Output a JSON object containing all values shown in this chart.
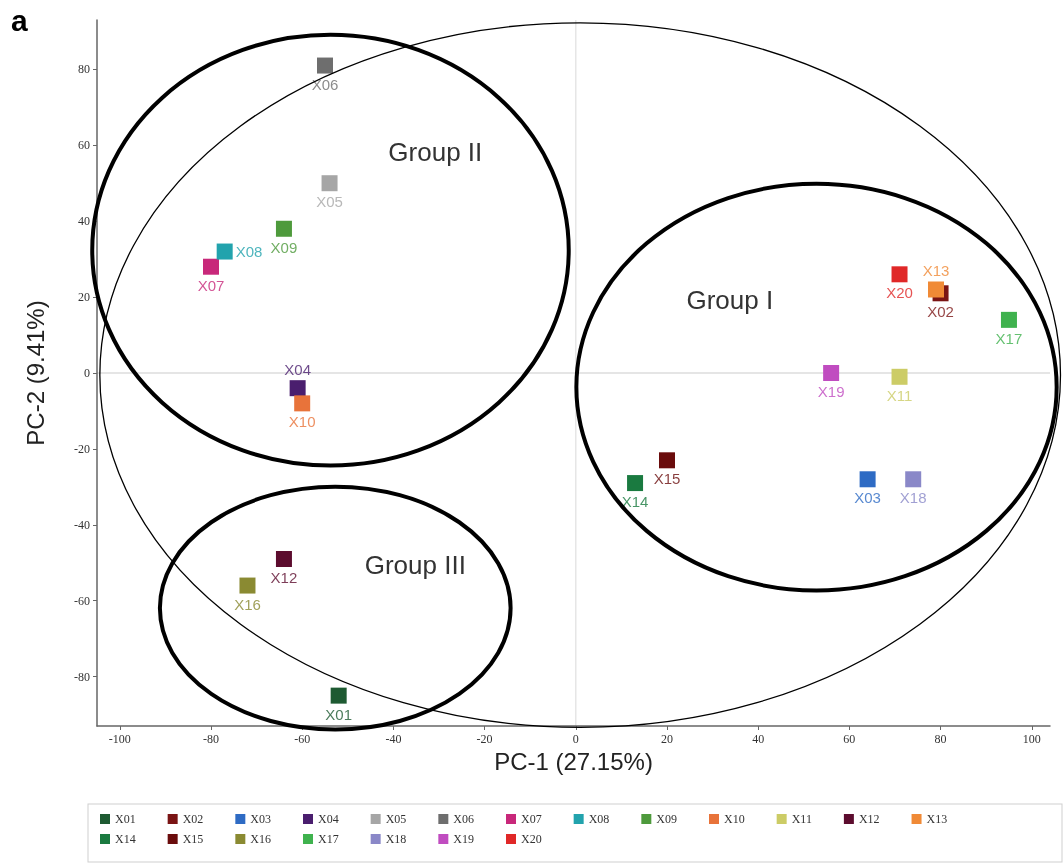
{
  "chart_data": {
    "type": "scatter",
    "title": "a",
    "xlabel": "PC-1 (27.15%)",
    "ylabel": "PC-2 (9.41%)",
    "xlim": [
      -105,
      104
    ],
    "ylim": [
      -93,
      93
    ],
    "xticks": [
      -100,
      -80,
      -60,
      -40,
      -20,
      0,
      20,
      40,
      60,
      80,
      100
    ],
    "yticks": [
      -80,
      -60,
      -40,
      -20,
      0,
      20,
      40,
      60,
      80
    ],
    "marker": "square",
    "legend": "bottom",
    "ref_lines": [
      {
        "axis": "x",
        "value": 0,
        "color": "#e6e6e6"
      },
      {
        "axis": "y",
        "value": 0,
        "color": "#dddddd"
      }
    ],
    "annotations": [
      "Group II",
      "Group I",
      "Group III"
    ],
    "series": [
      {
        "name": "X01",
        "color": "#1e5a32",
        "x": [
          -52
        ],
        "values": [
          -85
        ]
      },
      {
        "name": "X02",
        "color": "#7a1414",
        "x": [
          80
        ],
        "values": [
          21
        ]
      },
      {
        "name": "X03",
        "color": "#2e6bc4",
        "x": [
          64
        ],
        "values": [
          -28
        ]
      },
      {
        "name": "X04",
        "color": "#4a1e6e",
        "x": [
          -61
        ],
        "values": [
          -4
        ]
      },
      {
        "name": "X05",
        "color": "#a6a6a6",
        "x": [
          -54
        ],
        "values": [
          50
        ]
      },
      {
        "name": "X06",
        "color": "#6e6e6e",
        "x": [
          -55
        ],
        "values": [
          81
        ]
      },
      {
        "name": "X07",
        "color": "#c8287a",
        "x": [
          -80
        ],
        "values": [
          28
        ]
      },
      {
        "name": "X08",
        "color": "#22a3ad",
        "x": [
          -77
        ],
        "values": [
          32
        ]
      },
      {
        "name": "X09",
        "color": "#4e9a3c",
        "x": [
          -64
        ],
        "values": [
          38
        ]
      },
      {
        "name": "X10",
        "color": "#e8733a",
        "x": [
          -60
        ],
        "values": [
          -8
        ]
      },
      {
        "name": "X11",
        "color": "#cccc66",
        "x": [
          71
        ],
        "values": [
          -1
        ]
      },
      {
        "name": "X12",
        "color": "#5c0c2e",
        "x": [
          -64
        ],
        "values": [
          -49
        ]
      },
      {
        "name": "X13",
        "color": "#f08a36",
        "x": [
          79
        ],
        "values": [
          22
        ]
      },
      {
        "name": "X14",
        "color": "#1a7a40",
        "x": [
          13
        ],
        "values": [
          -29
        ]
      },
      {
        "name": "X15",
        "color": "#6a0c0c",
        "x": [
          20
        ],
        "values": [
          -23
        ]
      },
      {
        "name": "X16",
        "color": "#8a8a32",
        "x": [
          -72
        ],
        "values": [
          -56
        ]
      },
      {
        "name": "X17",
        "color": "#3fb24e",
        "x": [
          95
        ],
        "values": [
          14
        ]
      },
      {
        "name": "X18",
        "color": "#8a88c8",
        "x": [
          74
        ],
        "values": [
          -28
        ]
      },
      {
        "name": "X19",
        "color": "#c04cc0",
        "x": [
          56
        ],
        "values": [
          0
        ]
      },
      {
        "name": "X20",
        "color": "#e02828",
        "x": [
          71
        ],
        "values": [
          26
        ]
      }
    ]
  }
}
